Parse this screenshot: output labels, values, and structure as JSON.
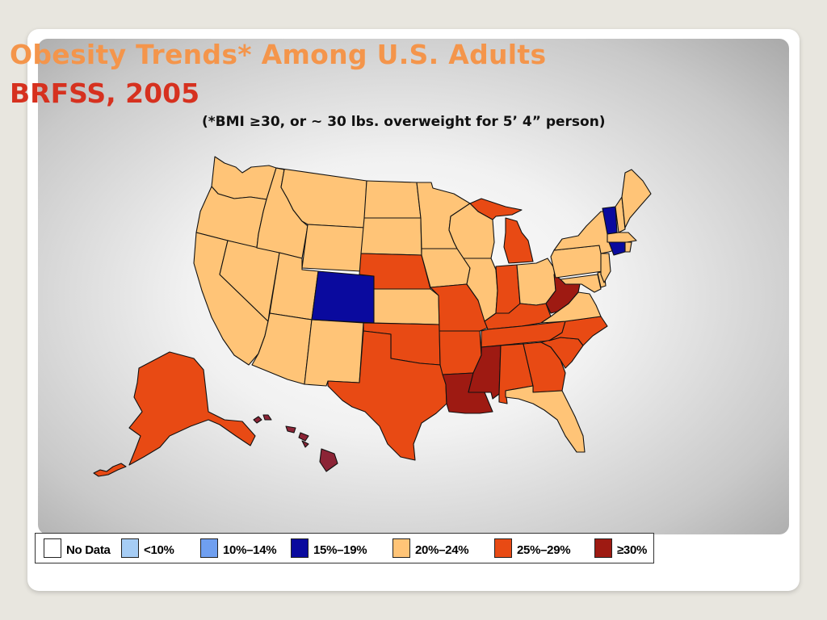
{
  "title": {
    "line1": "Obesity Trends* Among U.S. Adults",
    "line2": "BRFSS, 2005",
    "subtitle": "(*BMI ≥30, or ~ 30 lbs. overweight for 5’ 4” person)"
  },
  "colors": {
    "no_data": "#ffffff",
    "lt10": "#a6cdf5",
    "p10_14": "#6f9ff0",
    "p15_19": "#0a0a9e",
    "p20_24": "#ffc477",
    "p25_29": "#e84a14",
    "ge30": "#9e1a12",
    "hawaii": "#8c2436",
    "title_orange": "#f4954b",
    "title_red": "#d6311f"
  },
  "legend": [
    {
      "label": "No Data",
      "color_key": "no_data"
    },
    {
      "label": "<10%",
      "color_key": "lt10"
    },
    {
      "label": "10%–14%",
      "color_key": "p10_14"
    },
    {
      "label": "15%–19%",
      "color_key": "p15_19"
    },
    {
      "label": "20%–24%",
      "color_key": "p20_24"
    },
    {
      "label": "25%–29%",
      "color_key": "p25_29"
    },
    {
      "label": "≥30%",
      "color_key": "ge30"
    }
  ],
  "states": [
    {
      "abbr": "WA",
      "category": "20-24"
    },
    {
      "abbr": "OR",
      "category": "20-24"
    },
    {
      "abbr": "CA",
      "category": "20-24"
    },
    {
      "abbr": "NV",
      "category": "20-24"
    },
    {
      "abbr": "ID",
      "category": "20-24"
    },
    {
      "abbr": "MT",
      "category": "20-24"
    },
    {
      "abbr": "WY",
      "category": "20-24"
    },
    {
      "abbr": "UT",
      "category": "20-24"
    },
    {
      "abbr": "AZ",
      "category": "20-24"
    },
    {
      "abbr": "NM",
      "category": "20-24"
    },
    {
      "abbr": "CO",
      "category": "15-19"
    },
    {
      "abbr": "ND",
      "category": "20-24"
    },
    {
      "abbr": "SD",
      "category": "20-24"
    },
    {
      "abbr": "NE",
      "category": "25-29"
    },
    {
      "abbr": "KS",
      "category": "20-24"
    },
    {
      "abbr": "OK",
      "category": "25-29"
    },
    {
      "abbr": "TX",
      "category": "25-29"
    },
    {
      "abbr": "MN",
      "category": "20-24"
    },
    {
      "abbr": "IA",
      "category": "20-24"
    },
    {
      "abbr": "MO",
      "category": "25-29"
    },
    {
      "abbr": "AR",
      "category": "25-29"
    },
    {
      "abbr": "LA",
      "category": ">=30"
    },
    {
      "abbr": "WI",
      "category": "20-24"
    },
    {
      "abbr": "IL",
      "category": "20-24"
    },
    {
      "abbr": "MI",
      "category": "25-29"
    },
    {
      "abbr": "IN",
      "category": "25-29"
    },
    {
      "abbr": "OH",
      "category": "20-24"
    },
    {
      "abbr": "KY",
      "category": "25-29"
    },
    {
      "abbr": "TN",
      "category": "25-29"
    },
    {
      "abbr": "MS",
      "category": ">=30"
    },
    {
      "abbr": "AL",
      "category": "25-29"
    },
    {
      "abbr": "GA",
      "category": "25-29"
    },
    {
      "abbr": "FL",
      "category": "20-24"
    },
    {
      "abbr": "SC",
      "category": "25-29"
    },
    {
      "abbr": "NC",
      "category": "25-29"
    },
    {
      "abbr": "VA",
      "category": "20-24"
    },
    {
      "abbr": "WV",
      "category": ">=30"
    },
    {
      "abbr": "MD",
      "category": "20-24"
    },
    {
      "abbr": "DE",
      "category": "20-24"
    },
    {
      "abbr": "NJ",
      "category": "20-24"
    },
    {
      "abbr": "PA",
      "category": "20-24"
    },
    {
      "abbr": "NY",
      "category": "20-24"
    },
    {
      "abbr": "VT",
      "category": "15-19"
    },
    {
      "abbr": "NH",
      "category": "20-24"
    },
    {
      "abbr": "ME",
      "category": "20-24"
    },
    {
      "abbr": "MA",
      "category": "20-24"
    },
    {
      "abbr": "CT",
      "category": "15-19"
    },
    {
      "abbr": "RI",
      "category": "20-24"
    },
    {
      "abbr": "AK",
      "category": "25-29"
    },
    {
      "abbr": "HI",
      "category": ">=30"
    }
  ]
}
